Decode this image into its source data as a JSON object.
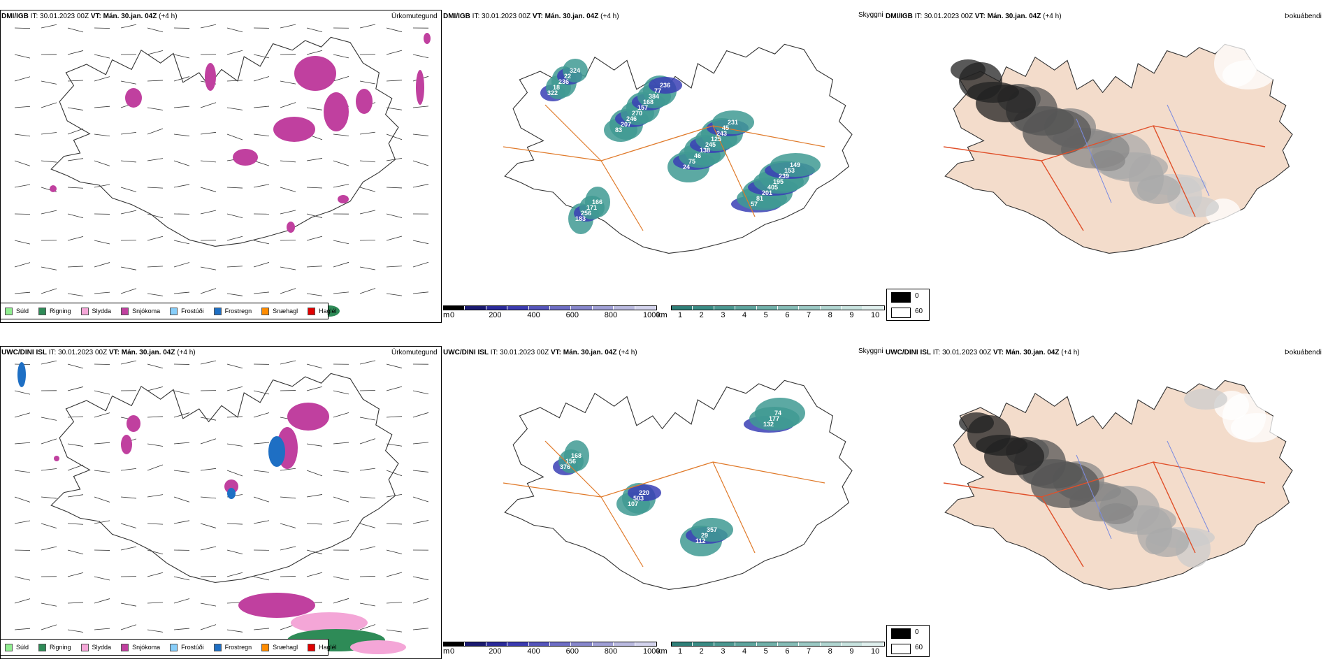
{
  "rows": [
    {
      "model": "DMI/IGB",
      "it_prefix": "IT:",
      "it_value": "30.01.2023 00Z",
      "vt_prefix": "VT:",
      "vt_value": "Mán. 30.jan. 04Z",
      "lead": "(+4 h)",
      "titles": [
        "Úrkomutegund",
        "Skyggni",
        "Þokuábendi"
      ],
      "vis_labels": [
        "322",
        "83",
        "24",
        "57",
        "18",
        "207",
        "75",
        "81",
        "236",
        "246",
        "46",
        "201",
        "22",
        "270",
        "138",
        "405",
        "324",
        "157",
        "245",
        "195",
        "183",
        "168",
        "125",
        "239",
        "256",
        "384",
        "243",
        "153",
        "171",
        "77",
        "45",
        "149",
        "166",
        "236",
        "231"
      ]
    },
    {
      "model": "UWC/DINI ISL",
      "it_prefix": "IT:",
      "it_value": "30.01.2023 00Z",
      "vt_prefix": "VT:",
      "vt_value": "Mán. 30.jan. 04Z",
      "lead": "(+4 h)",
      "titles": [
        "Úrkomutegund",
        "Skyggni",
        "Þokuábendi"
      ],
      "vis_labels": [
        "376",
        "107",
        "112",
        "132",
        "156",
        "503",
        "29",
        "177",
        "168",
        "220",
        "357",
        "74"
      ]
    }
  ],
  "precip_legend": [
    {
      "label": "Súld",
      "color": "#90ee90"
    },
    {
      "label": "Rigning",
      "color": "#2e8b57"
    },
    {
      "label": "Slydda",
      "color": "#f4a6d7"
    },
    {
      "label": "Snjókoma",
      "color": "#c0409f"
    },
    {
      "label": "Frostúði",
      "color": "#87cefa"
    },
    {
      "label": "Frostregn",
      "color": "#1e6fc4"
    },
    {
      "label": "Snæhagl",
      "color": "#ff8c00"
    },
    {
      "label": "Haglél",
      "color": "#e00000"
    }
  ],
  "scale_m": {
    "unit": "m",
    "ticks": [
      "0",
      "200",
      "400",
      "600",
      "800",
      "1000"
    ]
  },
  "scale_km": {
    "unit": "km",
    "ticks": [
      "1",
      "2",
      "3",
      "4",
      "5",
      "6",
      "7",
      "8",
      "9",
      "10"
    ]
  },
  "fog_legend": {
    "top": "0",
    "bottom": "60"
  }
}
